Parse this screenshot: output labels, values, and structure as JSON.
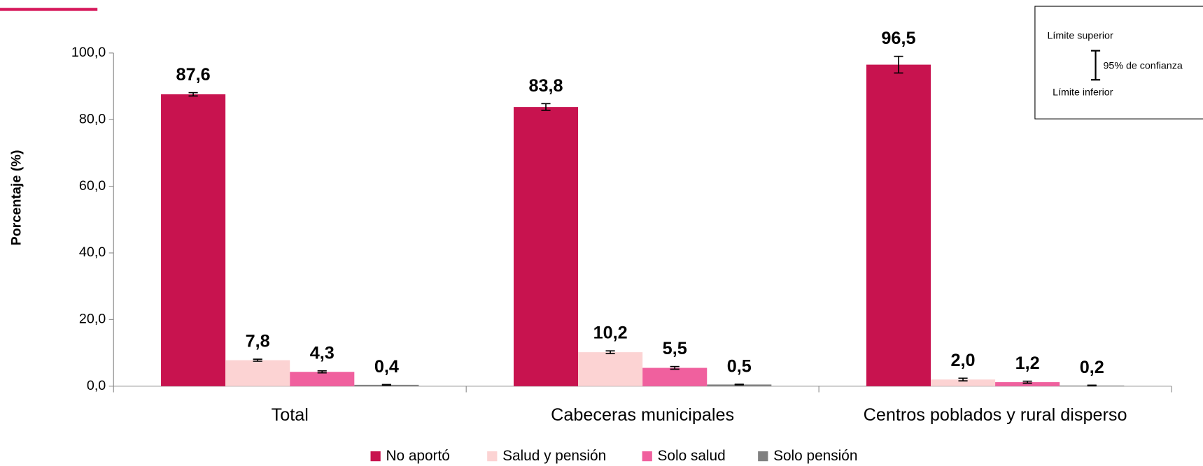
{
  "chart_data": {
    "type": "bar",
    "y_label": "Porcentaje (%)",
    "categories": [
      "Total",
      "Cabeceras municipales",
      "Centros poblados y rural disperso"
    ],
    "series": [
      {
        "name": "No aportó",
        "color": "#c8134f",
        "values": [
          87.6,
          83.8,
          96.5
        ],
        "value_labels": [
          "87,6",
          "83,8",
          "96,5"
        ],
        "errors": [
          0.5,
          1.0,
          2.5
        ]
      },
      {
        "name": "Salud y pensión",
        "color": "#fcd3d3",
        "values": [
          7.8,
          10.2,
          2.0
        ],
        "value_labels": [
          "7,8",
          "10,2",
          "2,0"
        ],
        "errors": [
          0.3,
          0.4,
          0.4
        ]
      },
      {
        "name": "Solo salud",
        "color": "#f0609e",
        "values": [
          4.3,
          5.5,
          1.2
        ],
        "value_labels": [
          "4,3",
          "5,5",
          "1,2"
        ],
        "errors": [
          0.3,
          0.4,
          0.3
        ]
      },
      {
        "name": "Solo pensión",
        "color": "#808080",
        "values": [
          0.4,
          0.5,
          0.2
        ],
        "value_labels": [
          "0,4",
          "0,5",
          "0,2"
        ],
        "errors": [
          0.1,
          0.1,
          0.1
        ]
      }
    ],
    "ylim": [
      0,
      100
    ],
    "yticks": [
      {
        "value": 0,
        "label": "0,0"
      },
      {
        "value": 20,
        "label": "20,0"
      },
      {
        "value": 40,
        "label": "40,0"
      },
      {
        "value": 60,
        "label": "60,0"
      },
      {
        "value": 80,
        "label": "80,0"
      },
      {
        "value": 100,
        "label": "100,0"
      }
    ],
    "annotations": {
      "upper": "Límite superior",
      "confidence": "95% de confianza",
      "lower": "Límite inferior"
    }
  }
}
